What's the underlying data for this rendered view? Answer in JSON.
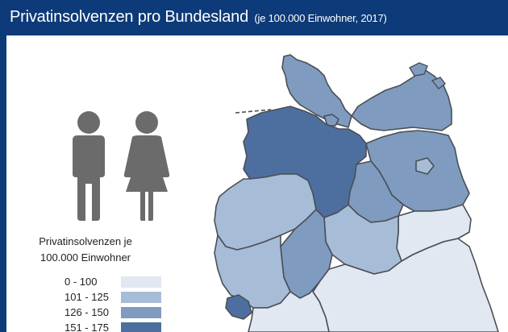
{
  "header": {
    "title": "Privatinsolvenzen pro Bundesland",
    "subtitle": "(je 100.000 Einwohner, 2017)"
  },
  "legend": {
    "title_line1": "Privatinsolvenzen je",
    "title_line2": "100.000 Einwohner",
    "classes": [
      {
        "label": "0 - 100",
        "color": "#e2e8f1"
      },
      {
        "label": "101 - 125",
        "color": "#a7bcd6"
      },
      {
        "label": "126 - 150",
        "color": "#809bc0"
      },
      {
        "label": "151 - 175",
        "color": "#4d6fa0"
      }
    ]
  },
  "icons": [
    "man-icon",
    "woman-icon"
  ],
  "colors": {
    "header_bg": "#0d3a78",
    "icon_gray": "#6b6b6b",
    "border": "#4a4f56"
  }
}
